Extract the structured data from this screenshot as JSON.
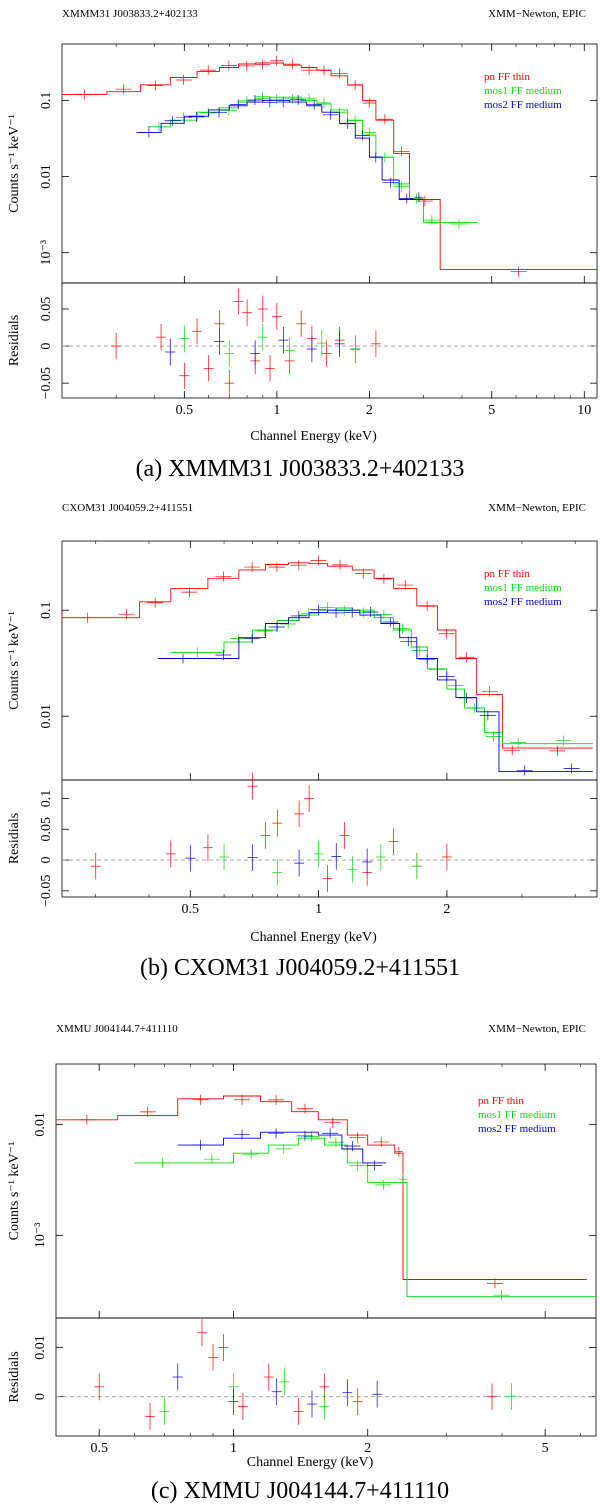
{
  "colors": {
    "pn": "#ff0000",
    "mos1": "#00dd00",
    "mos2": "#0000dd",
    "axis": "#000000",
    "ref": "#999999"
  },
  "chart_data": [
    {
      "type": "line",
      "id": "a",
      "header_left": "XMMM31 J003833.2+402133",
      "header_right": "XMM−Newton, EPIC",
      "caption": "(a) XMMM31 J003833.2+402133",
      "xlabel": "Channel Energy (keV)",
      "ylabel_top": "Counts s⁻¹ keV⁻¹",
      "ylabel_bottom": "Residials",
      "xlim": [
        0.2,
        11
      ],
      "ylim": [
        0.0004,
        0.55
      ],
      "rlim": [
        -0.07,
        0.085
      ],
      "x_ticks": [
        {
          "v": 0.5,
          "label": "0.5"
        },
        {
          "v": 1,
          "label": "1"
        },
        {
          "v": 2,
          "label": "2"
        },
        {
          "v": 5,
          "label": "5"
        },
        {
          "v": 10,
          "label": "10"
        }
      ],
      "y_ticks": [
        {
          "v": 0.1,
          "label": "0.1"
        },
        {
          "v": 0.01,
          "label": "0.01"
        },
        {
          "v": 0.001,
          "label": "10⁻³"
        }
      ],
      "r_ticks": [
        {
          "v": 0.05,
          "label": "0.05"
        },
        {
          "v": 0,
          "label": "0"
        },
        {
          "v": -0.05,
          "label": "−0.05"
        }
      ],
      "legend": [
        "pn FF thin",
        "mos1 FF medium",
        "mos2 FF medium"
      ],
      "series": [
        {
          "name": "pn FF thin",
          "color_key": "pn",
          "x": [
            0.2,
            0.28,
            0.36,
            0.45,
            0.55,
            0.65,
            0.75,
            0.85,
            0.95,
            1.05,
            1.2,
            1.35,
            1.5,
            1.7,
            1.9,
            2.1,
            2.4,
            2.7,
            3.4,
            11
          ],
          "y": [
            0.12,
            0.13,
            0.16,
            0.2,
            0.24,
            0.27,
            0.3,
            0.31,
            0.31,
            0.29,
            0.27,
            0.25,
            0.21,
            0.16,
            0.1,
            0.055,
            0.02,
            0.005,
            0.0006,
            0.0006
          ],
          "residuals": [
            {
              "x": 0.3,
              "y": 0.0
            },
            {
              "x": 0.42,
              "y": 0.012
            },
            {
              "x": 0.5,
              "y": -0.04
            },
            {
              "x": 0.55,
              "y": 0.02
            },
            {
              "x": 0.6,
              "y": -0.03
            },
            {
              "x": 0.65,
              "y": 0.03
            },
            {
              "x": 0.7,
              "y": -0.05
            },
            {
              "x": 0.75,
              "y": 0.06
            },
            {
              "x": 0.8,
              "y": 0.045
            },
            {
              "x": 0.85,
              "y": -0.02
            },
            {
              "x": 0.9,
              "y": 0.05
            },
            {
              "x": 0.95,
              "y": -0.03
            },
            {
              "x": 1.0,
              "y": 0.04
            },
            {
              "x": 1.1,
              "y": -0.02
            },
            {
              "x": 1.2,
              "y": 0.03
            },
            {
              "x": 1.3,
              "y": 0.01
            },
            {
              "x": 1.45,
              "y": -0.01
            },
            {
              "x": 1.6,
              "y": 0.008
            },
            {
              "x": 1.8,
              "y": -0.005
            },
            {
              "x": 2.1,
              "y": 0.003
            }
          ]
        },
        {
          "name": "mos1 FF medium",
          "color_key": "mos1",
          "x": [
            0.38,
            0.45,
            0.55,
            0.65,
            0.75,
            0.85,
            0.95,
            1.05,
            1.2,
            1.35,
            1.5,
            1.7,
            1.9,
            2.1,
            2.4,
            2.7,
            3.0,
            3.4,
            4.5
          ],
          "y": [
            0.045,
            0.055,
            0.07,
            0.08,
            0.095,
            0.105,
            0.11,
            0.11,
            0.1,
            0.09,
            0.075,
            0.055,
            0.035,
            0.018,
            0.008,
            0.005,
            0.0025,
            0.0025,
            0.0025
          ],
          "residuals": [
            {
              "x": 0.5,
              "y": 0.01
            },
            {
              "x": 0.7,
              "y": -0.01
            },
            {
              "x": 0.9,
              "y": 0.012
            },
            {
              "x": 1.1,
              "y": -0.006
            },
            {
              "x": 1.4,
              "y": 0.004
            },
            {
              "x": 1.8,
              "y": -0.003
            }
          ]
        },
        {
          "name": "mos2 FF medium",
          "color_key": "mos2",
          "x": [
            0.35,
            0.42,
            0.5,
            0.6,
            0.7,
            0.8,
            0.9,
            1.0,
            1.1,
            1.25,
            1.4,
            1.6,
            1.8,
            2.0,
            2.2,
            2.5,
            2.8,
            3.0
          ],
          "y": [
            0.038,
            0.05,
            0.062,
            0.075,
            0.085,
            0.095,
            0.1,
            0.1,
            0.095,
            0.085,
            0.07,
            0.05,
            0.032,
            0.018,
            0.009,
            0.005,
            0.005,
            0.005
          ],
          "residuals": [
            {
              "x": 0.45,
              "y": -0.008
            },
            {
              "x": 0.65,
              "y": 0.006
            },
            {
              "x": 0.85,
              "y": -0.01
            },
            {
              "x": 1.05,
              "y": 0.008
            },
            {
              "x": 1.3,
              "y": -0.004
            },
            {
              "x": 1.6,
              "y": 0.003
            }
          ]
        }
      ]
    },
    {
      "type": "line",
      "id": "b",
      "header_left": "CXOM31 J004059.2+411551",
      "header_right": "XMM−Newton, EPIC",
      "caption": "(b) CXOM31 J004059.2+411551",
      "xlabel": "Channel Energy (keV)",
      "ylabel_top": "Counts s⁻¹ keV⁻¹",
      "ylabel_bottom": "Residials",
      "xlim": [
        0.25,
        4.5
      ],
      "ylim": [
        0.0025,
        0.45
      ],
      "rlim": [
        -0.06,
        0.13
      ],
      "x_ticks": [
        {
          "v": 0.5,
          "label": "0.5"
        },
        {
          "v": 1,
          "label": "1"
        },
        {
          "v": 2,
          "label": "2"
        }
      ],
      "y_ticks": [
        {
          "v": 0.1,
          "label": "0.1"
        },
        {
          "v": 0.01,
          "label": "0.01"
        }
      ],
      "r_ticks": [
        {
          "v": 0.1,
          "label": "0.1"
        },
        {
          "v": 0.05,
          "label": "0.05"
        },
        {
          "v": 0,
          "label": "0"
        },
        {
          "v": -0.05,
          "label": "−0.05"
        }
      ],
      "legend": [
        "pn FF thin",
        "mos1 FF medium",
        "mos2 FF medium"
      ],
      "series": [
        {
          "name": "pn FF thin",
          "color_key": "pn",
          "x": [
            0.25,
            0.33,
            0.38,
            0.45,
            0.55,
            0.65,
            0.75,
            0.85,
            0.95,
            1.05,
            1.2,
            1.35,
            1.5,
            1.7,
            1.9,
            2.1,
            2.35,
            2.7,
            3.0,
            4.4
          ],
          "y": [
            0.085,
            0.085,
            0.12,
            0.16,
            0.2,
            0.24,
            0.27,
            0.28,
            0.275,
            0.26,
            0.24,
            0.2,
            0.16,
            0.11,
            0.065,
            0.035,
            0.016,
            0.005,
            0.005,
            0.005
          ],
          "residuals": [
            {
              "x": 0.3,
              "y": -0.01
            },
            {
              "x": 0.45,
              "y": 0.01
            },
            {
              "x": 0.55,
              "y": 0.02
            },
            {
              "x": 0.7,
              "y": 0.12
            },
            {
              "x": 0.75,
              "y": 0.04
            },
            {
              "x": 0.8,
              "y": 0.06
            },
            {
              "x": 0.9,
              "y": 0.075
            },
            {
              "x": 0.95,
              "y": 0.1
            },
            {
              "x": 1.05,
              "y": -0.03
            },
            {
              "x": 1.15,
              "y": 0.04
            },
            {
              "x": 1.3,
              "y": -0.02
            },
            {
              "x": 1.5,
              "y": 0.03
            },
            {
              "x": 1.7,
              "y": -0.01
            },
            {
              "x": 2.0,
              "y": 0.005
            }
          ]
        },
        {
          "name": "mos1 FF medium",
          "color_key": "mos1",
          "x": [
            0.45,
            0.6,
            0.7,
            0.8,
            0.9,
            1.0,
            1.1,
            1.2,
            1.35,
            1.5,
            1.65,
            1.8,
            2.0,
            2.2,
            2.45,
            2.7,
            3.2,
            4.4
          ],
          "y": [
            0.04,
            0.05,
            0.065,
            0.08,
            0.09,
            0.1,
            0.105,
            0.1,
            0.085,
            0.065,
            0.045,
            0.028,
            0.018,
            0.012,
            0.007,
            0.0055,
            0.0055,
            0.0055
          ],
          "residuals": [
            {
              "x": 0.6,
              "y": 0.005
            },
            {
              "x": 0.8,
              "y": -0.02
            },
            {
              "x": 1.0,
              "y": 0.01
            },
            {
              "x": 1.2,
              "y": -0.015
            },
            {
              "x": 1.4,
              "y": 0.005
            },
            {
              "x": 1.7,
              "y": -0.01
            }
          ]
        },
        {
          "name": "mos2 FF medium",
          "color_key": "mos2",
          "x": [
            0.42,
            0.55,
            0.65,
            0.75,
            0.85,
            0.95,
            1.05,
            1.15,
            1.25,
            1.4,
            1.55,
            1.7,
            1.9,
            2.1,
            2.35,
            2.65,
            3.5,
            4.4
          ],
          "y": [
            0.035,
            0.035,
            0.055,
            0.075,
            0.085,
            0.095,
            0.1,
            0.1,
            0.09,
            0.075,
            0.055,
            0.035,
            0.022,
            0.015,
            0.011,
            0.003,
            0.003,
            0.003
          ],
          "residuals": [
            {
              "x": 0.5,
              "y": 0.003
            },
            {
              "x": 0.7,
              "y": 0.004
            },
            {
              "x": 0.9,
              "y": -0.005
            },
            {
              "x": 1.1,
              "y": 0.006
            },
            {
              "x": 1.3,
              "y": -0.003
            }
          ]
        }
      ]
    },
    {
      "type": "line",
      "id": "c",
      "header_left": "XMMU J004144.7+411110",
      "header_right": "XMM−Newton, EPIC",
      "caption": "(c) XMMU J004144.7+411110",
      "xlabel": "Channel Energy (keV)",
      "ylabel_top": "Counts s⁻¹ keV⁻¹",
      "ylabel_bottom": "Residials",
      "xlim": [
        0.4,
        6.5
      ],
      "ylim": [
        0.00018,
        0.035
      ],
      "rlim": [
        -0.008,
        0.016
      ],
      "x_ticks": [
        {
          "v": 0.5,
          "label": "0.5"
        },
        {
          "v": 1,
          "label": "1"
        },
        {
          "v": 2,
          "label": "2"
        },
        {
          "v": 5,
          "label": "5"
        }
      ],
      "y_ticks": [
        {
          "v": 0.01,
          "label": "0.01"
        },
        {
          "v": 0.001,
          "label": "10⁻³"
        }
      ],
      "r_ticks": [
        {
          "v": 0.01,
          "label": "0.01"
        },
        {
          "v": 0,
          "label": "0"
        }
      ],
      "legend": [
        "pn FF thin",
        "mos1 FF medium",
        "mos2 FF medium"
      ],
      "series": [
        {
          "name": "pn FF thin",
          "color_key": "pn",
          "x": [
            0.4,
            0.55,
            0.75,
            0.95,
            1.15,
            1.35,
            1.55,
            1.8,
            2.0,
            2.3,
            2.4,
            6.2
          ],
          "y": [
            0.011,
            0.012,
            0.017,
            0.018,
            0.016,
            0.013,
            0.011,
            0.008,
            0.0065,
            0.0055,
            0.0004,
            0.0004
          ],
          "residuals": [
            {
              "x": 0.5,
              "y": 0.002
            },
            {
              "x": 0.65,
              "y": -0.004
            },
            {
              "x": 0.85,
              "y": 0.013
            },
            {
              "x": 0.9,
              "y": 0.008
            },
            {
              "x": 0.95,
              "y": 0.01
            },
            {
              "x": 1.05,
              "y": -0.002
            },
            {
              "x": 1.2,
              "y": 0.004
            },
            {
              "x": 1.4,
              "y": -0.003
            },
            {
              "x": 1.6,
              "y": 0.002
            },
            {
              "x": 1.9,
              "y": -0.001
            },
            {
              "x": 3.8,
              "y": 0.0
            }
          ]
        },
        {
          "name": "mos1 FF medium",
          "color_key": "mos1",
          "x": [
            0.6,
            0.8,
            1.0,
            1.2,
            1.4,
            1.6,
            1.8,
            2.0,
            2.35,
            2.45,
            6.5
          ],
          "y": [
            0.0045,
            0.0045,
            0.0055,
            0.0065,
            0.0075,
            0.0065,
            0.0045,
            0.003,
            0.003,
            0.00028,
            0.00028
          ],
          "residuals": [
            {
              "x": 0.7,
              "y": -0.003
            },
            {
              "x": 1.0,
              "y": 0.002
            },
            {
              "x": 1.3,
              "y": 0.003
            },
            {
              "x": 1.6,
              "y": -0.002
            },
            {
              "x": 4.2,
              "y": 0.0
            }
          ]
        },
        {
          "name": "mos2 FF medium",
          "color_key": "mos2",
          "x": [
            0.75,
            0.95,
            1.15,
            1.35,
            1.55,
            1.75,
            1.95,
            2.2
          ],
          "y": [
            0.0065,
            0.0075,
            0.0085,
            0.0085,
            0.008,
            0.006,
            0.0045,
            0.004
          ],
          "residuals": [
            {
              "x": 0.75,
              "y": 0.004
            },
            {
              "x": 1.0,
              "y": -0.001
            },
            {
              "x": 1.25,
              "y": 0.001
            },
            {
              "x": 1.5,
              "y": -0.0015
            },
            {
              "x": 1.8,
              "y": 0.0008
            },
            {
              "x": 2.1,
              "y": 0.0005
            }
          ]
        }
      ]
    }
  ]
}
